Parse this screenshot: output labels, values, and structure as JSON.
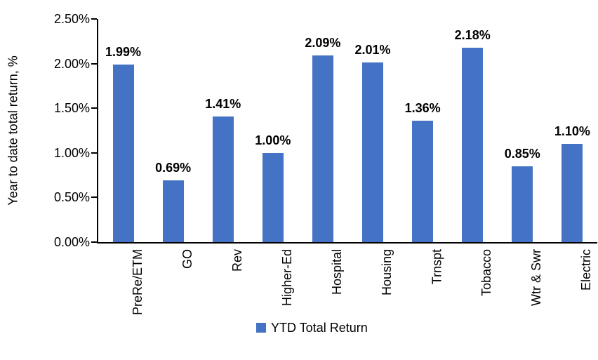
{
  "chart_data": {
    "type": "bar",
    "title": "",
    "xlabel": "",
    "ylabel": "Year to date total return, %",
    "ylim": [
      0,
      2.5
    ],
    "yticks": [
      "0.00%",
      "0.50%",
      "1.00%",
      "1.50%",
      "2.00%",
      "2.50%"
    ],
    "categories": [
      "PreRe/ETM",
      "GO",
      "Rev",
      "Higher-Ed",
      "Hospital",
      "Housing",
      "Trnspt",
      "Tobacco",
      "Wtr & Swr",
      "Electric"
    ],
    "series": [
      {
        "name": "YTD Total Return",
        "values": [
          1.99,
          0.69,
          1.41,
          1.0,
          2.09,
          2.01,
          1.36,
          2.18,
          0.85,
          1.1
        ],
        "labels": [
          "1.99%",
          "0.69%",
          "1.41%",
          "1.00%",
          "2.09%",
          "2.01%",
          "1.36%",
          "2.18%",
          "0.85%",
          "1.10%"
        ],
        "color": "#4472C4"
      }
    ],
    "legend": {
      "position": "bottom",
      "entries": [
        "YTD Total Return"
      ]
    },
    "grid": false,
    "background": "#FFFFFF",
    "axis_color": "#000000",
    "data_label_color": "#000000"
  }
}
